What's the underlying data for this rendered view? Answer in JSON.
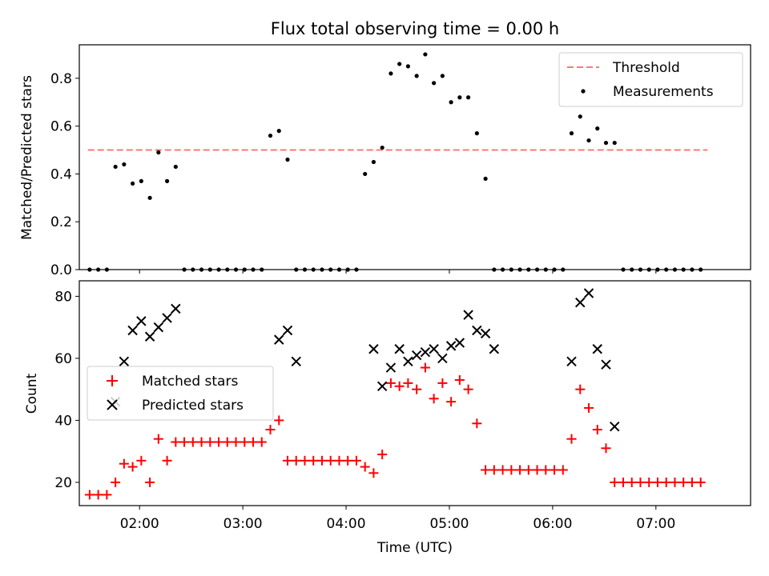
{
  "title": "Flux total observing time = 0.00 h",
  "chart_data": [
    {
      "type": "scatter",
      "panel": "top",
      "title": "Flux total observing time = 0.00 h",
      "xlabel": "",
      "ylabel": "Matched/Predicted stars",
      "xlim": [
        "01:25",
        "07:55"
      ],
      "ylim": [
        0.0,
        0.94
      ],
      "yticks": [
        "0.0",
        "0.2",
        "0.4",
        "0.6",
        "0.8"
      ],
      "ytick_values": [
        0.0,
        0.2,
        0.4,
        0.6,
        0.8
      ],
      "threshold": {
        "name": "Threshold",
        "y": 0.5,
        "x_range": [
          "01:30",
          "07:30"
        ],
        "color": "#ff7777"
      },
      "legend": {
        "position": "top-right",
        "entries": [
          "Threshold",
          "Measurements"
        ]
      },
      "series": [
        {
          "name": "Measurements",
          "color": "#000000",
          "marker": "dot",
          "x": [
            "01:31",
            "01:36",
            "01:41",
            "01:46",
            "01:51",
            "01:56",
            "02:01",
            "02:06",
            "02:11",
            "02:16",
            "02:21",
            "02:26",
            "02:31",
            "02:36",
            "02:41",
            "02:46",
            "02:51",
            "02:56",
            "03:01",
            "03:06",
            "03:11",
            "03:16",
            "03:21",
            "03:26",
            "03:31",
            "03:36",
            "03:41",
            "03:46",
            "03:51",
            "03:56",
            "04:01",
            "04:06",
            "04:11",
            "04:16",
            "04:21",
            "04:26",
            "04:31",
            "04:36",
            "04:41",
            "04:46",
            "04:51",
            "04:56",
            "05:01",
            "05:06",
            "05:11",
            "05:16",
            "05:21",
            "05:26",
            "05:31",
            "05:36",
            "05:41",
            "05:46",
            "05:51",
            "05:56",
            "06:01",
            "06:06",
            "06:11",
            "06:16",
            "06:21",
            "06:26",
            "06:31",
            "06:36",
            "06:41",
            "06:46",
            "06:51",
            "06:56",
            "07:01",
            "07:06",
            "07:11",
            "07:16",
            "07:21",
            "07:26"
          ],
          "y": [
            0.0,
            0.0,
            0.0,
            0.43,
            0.44,
            0.36,
            0.37,
            0.3,
            0.49,
            0.37,
            0.43,
            0.0,
            0.0,
            0.0,
            0.0,
            0.0,
            0.0,
            0.0,
            0.0,
            0.0,
            0.0,
            0.56,
            0.58,
            0.46,
            0.0,
            0.0,
            0.0,
            0.0,
            0.0,
            0.0,
            0.0,
            0.0,
            0.4,
            0.45,
            0.51,
            0.82,
            0.86,
            0.85,
            0.81,
            0.9,
            0.78,
            0.81,
            0.7,
            0.72,
            0.72,
            0.57,
            0.38,
            0.0,
            0.0,
            0.0,
            0.0,
            0.0,
            0.0,
            0.0,
            0.0,
            0.0,
            0.57,
            0.64,
            0.54,
            0.59,
            0.53,
            0.53,
            0.0,
            0.0,
            0.0,
            0.0,
            0.0,
            0.0,
            0.0,
            0.0,
            0.0,
            0.0
          ]
        }
      ]
    },
    {
      "type": "scatter",
      "panel": "bottom",
      "xlabel": "Time (UTC)",
      "ylabel": "Count",
      "xlim": [
        "01:25",
        "07:55"
      ],
      "ylim": [
        12.5,
        85
      ],
      "xticks": [
        "02:00",
        "03:00",
        "04:00",
        "05:00",
        "06:00",
        "07:00"
      ],
      "yticks": [
        "20",
        "40",
        "60",
        "80"
      ],
      "ytick_values": [
        20,
        40,
        60,
        80
      ],
      "legend": {
        "position": "center-left",
        "entries": [
          "Matched stars",
          "Predicted stars"
        ]
      },
      "series": [
        {
          "name": "Matched stars",
          "color": "#ff0000",
          "marker": "plus",
          "x": [
            "01:31",
            "01:36",
            "01:41",
            "01:46",
            "01:51",
            "01:56",
            "02:01",
            "02:06",
            "02:11",
            "02:16",
            "02:21",
            "02:26",
            "02:31",
            "02:36",
            "02:41",
            "02:46",
            "02:51",
            "02:56",
            "03:01",
            "03:06",
            "03:11",
            "03:16",
            "03:21",
            "03:26",
            "03:31",
            "03:36",
            "03:41",
            "03:46",
            "03:51",
            "03:56",
            "04:01",
            "04:06",
            "04:11",
            "04:16",
            "04:21",
            "04:26",
            "04:31",
            "04:36",
            "04:41",
            "04:46",
            "04:51",
            "04:56",
            "05:01",
            "05:06",
            "05:11",
            "05:16",
            "05:21",
            "05:26",
            "05:31",
            "05:36",
            "05:41",
            "05:46",
            "05:51",
            "05:56",
            "06:01",
            "06:06",
            "06:11",
            "06:16",
            "06:21",
            "06:26",
            "06:31",
            "06:36",
            "06:41",
            "06:46",
            "06:51",
            "06:56",
            "07:01",
            "07:06",
            "07:11",
            "07:16",
            "07:21",
            "07:26"
          ],
          "y": [
            16,
            16,
            16,
            20,
            26,
            25,
            27,
            20,
            34,
            27,
            33,
            33,
            33,
            33,
            33,
            33,
            33,
            33,
            33,
            33,
            33,
            37,
            40,
            27,
            27,
            27,
            27,
            27,
            27,
            27,
            27,
            27,
            25,
            23,
            29,
            52,
            51,
            52,
            50,
            57,
            47,
            52,
            46,
            53,
            50,
            39,
            24,
            24,
            24,
            24,
            24,
            24,
            24,
            24,
            24,
            24,
            34,
            50,
            44,
            37,
            31,
            20,
            20,
            20,
            20,
            20,
            20,
            20,
            20,
            20,
            20,
            20
          ]
        },
        {
          "name": "Predicted stars",
          "color": "#000000",
          "marker": "x",
          "x": [
            "01:46",
            "01:51",
            "01:56",
            "02:01",
            "02:06",
            "02:11",
            "02:16",
            "02:21",
            "03:21",
            "03:26",
            "03:31",
            "04:16",
            "04:21",
            "04:26",
            "04:31",
            "04:36",
            "04:41",
            "04:46",
            "04:51",
            "04:56",
            "05:01",
            "05:06",
            "05:11",
            "05:16",
            "05:21",
            "05:26",
            "06:11",
            "06:16",
            "06:21",
            "06:26",
            "06:31",
            "06:36"
          ],
          "y": [
            46,
            59,
            69,
            72,
            67,
            70,
            73,
            76,
            66,
            69,
            59,
            63,
            51,
            57,
            63,
            59,
            61,
            62,
            63,
            60,
            64,
            65,
            74,
            69,
            68,
            63,
            59,
            78,
            81,
            63,
            58,
            38
          ]
        }
      ]
    }
  ]
}
